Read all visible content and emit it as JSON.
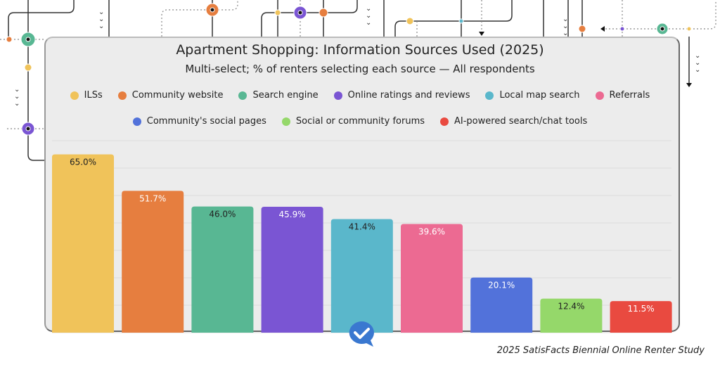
{
  "chart_data": {
    "type": "bar",
    "title": "Apartment Shopping: Information Sources Used (2025)",
    "subtitle": "Multi-select; % of renters selecting each source — All respondents",
    "categories": [
      "ILSs",
      "Community website",
      "Search engine",
      "Online ratings and reviews",
      "Local map search",
      "Referrals",
      "Community's social pages",
      "Social or community forums",
      "AI-powered search/chat tools"
    ],
    "values": [
      65.0,
      51.7,
      46.0,
      45.9,
      41.4,
      39.6,
      20.1,
      12.4,
      11.5
    ],
    "data_labels": [
      "65.0%",
      "51.7%",
      "46.0%",
      "45.9%",
      "41.4%",
      "39.6%",
      "20.1%",
      "12.4%",
      "11.5%"
    ],
    "colors": [
      "#f0c35a",
      "#e67e3f",
      "#58b793",
      "#7a55d3",
      "#5ab7cb",
      "#ec6a92",
      "#5272da",
      "#95d86a",
      "#e94a40"
    ],
    "label_colors": [
      "#222222",
      "#ffffff",
      "#222222",
      "#ffffff",
      "#222222",
      "#ffffff",
      "#ffffff",
      "#222222",
      "#ffffff"
    ],
    "ylim": [
      0,
      70
    ],
    "grid": true,
    "legend_placement": "top",
    "xlabel": "",
    "ylabel": ""
  },
  "source": "2025 SatisFacts Biennial Online Renter Study"
}
